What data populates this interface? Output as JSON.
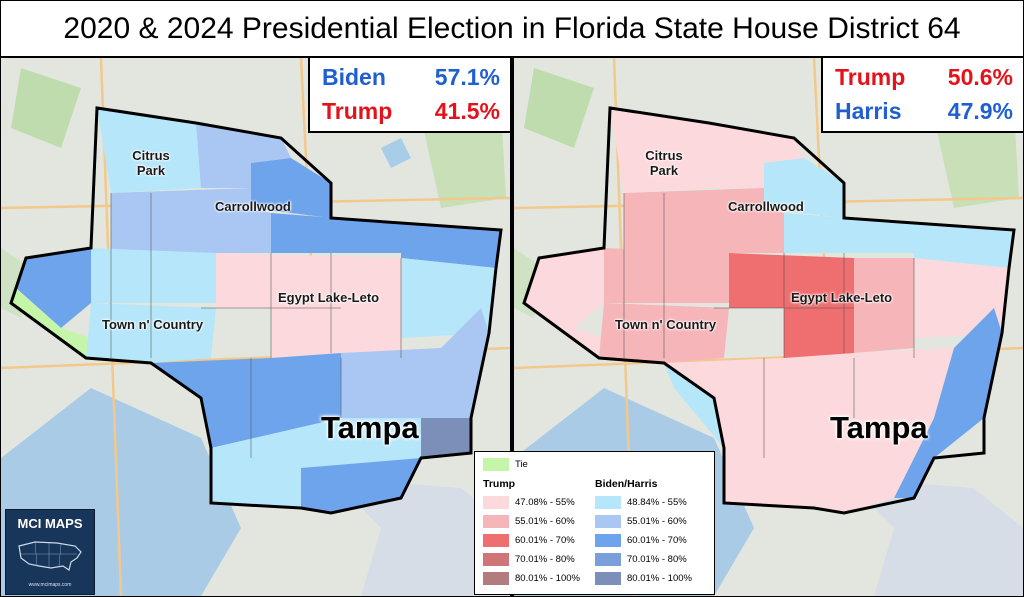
{
  "title": "2020 & 2024 Presidential Election in Florida State House District 64",
  "colors": {
    "dem_blue": "#1f5fd1",
    "rep_red": "#e4131b",
    "tie": "#c5f5a8",
    "trump_scale": [
      "#fcd9dd",
      "#f6b5b9",
      "#ef6e6f",
      "#cf7577",
      "#b27c7e"
    ],
    "biden_scale": [
      "#b6e6f9",
      "#a9c7f2",
      "#6ea4ec",
      "#7b9fd8",
      "#7b8fb9"
    ]
  },
  "panel_2020": {
    "results": [
      {
        "name": "Biden",
        "pct": "57.1%",
        "color": "#1f5fd1"
      },
      {
        "name": "Trump",
        "pct": "41.5%",
        "color": "#e4131b"
      }
    ]
  },
  "panel_2024": {
    "results": [
      {
        "name": "Trump",
        "pct": "50.6%",
        "color": "#e4131b"
      },
      {
        "name": "Harris",
        "pct": "47.9%",
        "color": "#1f5fd1"
      }
    ]
  },
  "places": {
    "citrus_park": "Citrus Park",
    "carrollwood": "Carrollwood",
    "egypt_lake_leto": "Egypt Lake-Leto",
    "town_n_country": "Town n' Country",
    "tampa": "Tampa"
  },
  "legend": {
    "tie_label": "Tie",
    "trump_header": "Trump",
    "biden_header": "Biden/Harris",
    "trump_ranges": [
      "47.08% - 55%",
      "55.01% - 60%",
      "60.01% - 70%",
      "70.01% - 80%",
      "80.01% - 100%"
    ],
    "biden_ranges": [
      "48.84% - 55%",
      "55.01% - 60%",
      "60.01% - 70%",
      "70.01% - 80%",
      "80.01% - 100%"
    ]
  },
  "logo": {
    "brand": "MCI MAPS",
    "url": "www.mcimaps.com"
  }
}
